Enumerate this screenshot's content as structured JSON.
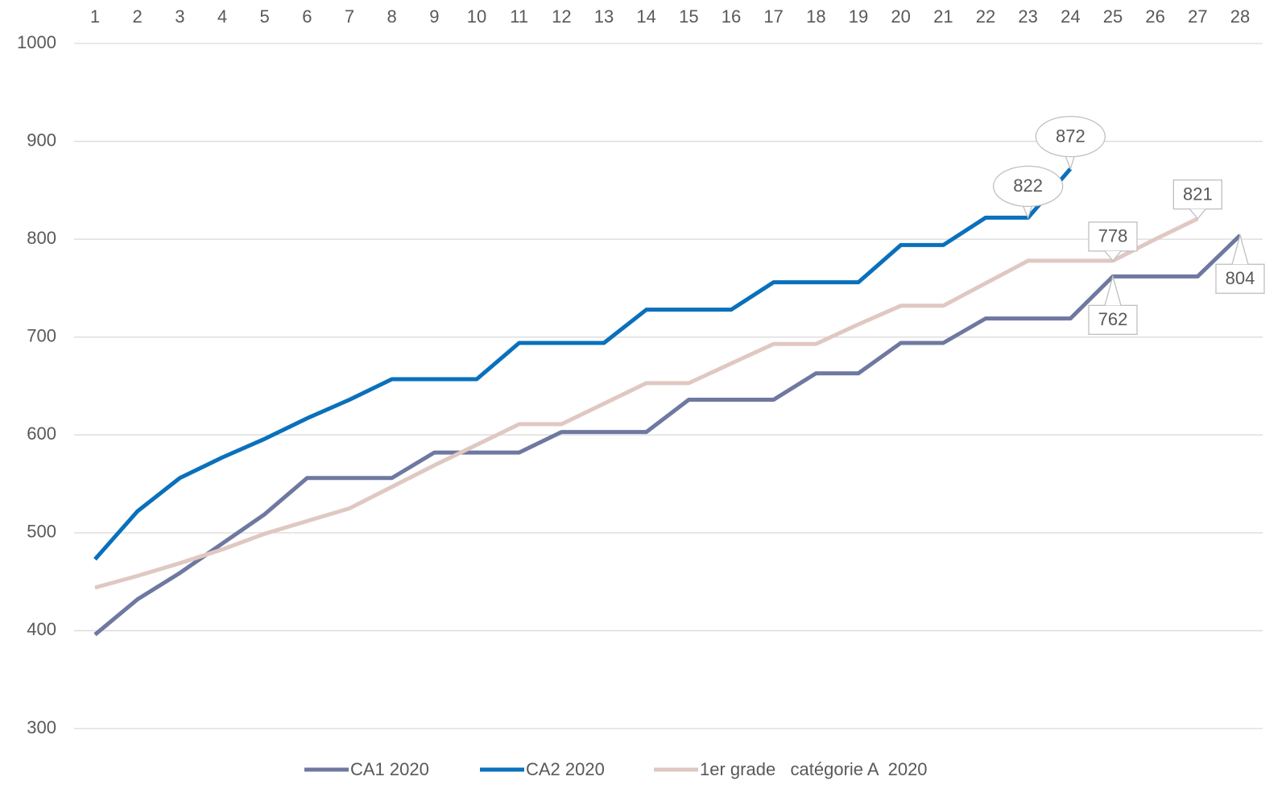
{
  "chart_data": {
    "type": "line",
    "categories": [
      1,
      2,
      3,
      4,
      5,
      6,
      7,
      8,
      9,
      10,
      11,
      12,
      13,
      14,
      15,
      16,
      17,
      18,
      19,
      20,
      21,
      22,
      23,
      24,
      25,
      26,
      27,
      28
    ],
    "ylim": [
      300,
      1000
    ],
    "yticks": [
      300,
      400,
      500,
      600,
      700,
      800,
      900,
      1000
    ],
    "grid": true,
    "legend": "bottom",
    "series": [
      {
        "name": "CA1 2020",
        "color": "#6e78a0",
        "values": [
          396,
          432,
          459,
          489,
          519,
          556,
          556,
          556,
          582,
          582,
          582,
          603,
          603,
          603,
          636,
          636,
          636,
          663,
          663,
          694,
          694,
          719,
          719,
          719,
          762,
          762,
          762,
          804
        ]
      },
      {
        "name": "CA2 2020",
        "color": "#0a70bb",
        "values": [
          473,
          522,
          556,
          577,
          596,
          617,
          636,
          657,
          657,
          657,
          694,
          694,
          694,
          728,
          728,
          728,
          756,
          756,
          756,
          794,
          794,
          822,
          822,
          872,
          null,
          null,
          null,
          null
        ]
      },
      {
        "name": "1er grade   catégorie A  2020",
        "color": "#e0c8c2",
        "values": [
          444,
          456,
          469,
          483,
          499,
          512,
          525,
          547,
          569,
          590,
          611,
          611,
          632,
          653,
          653,
          673,
          693,
          693,
          713,
          732,
          732,
          755,
          778,
          778,
          778,
          800,
          821,
          null
        ]
      }
    ]
  }
}
